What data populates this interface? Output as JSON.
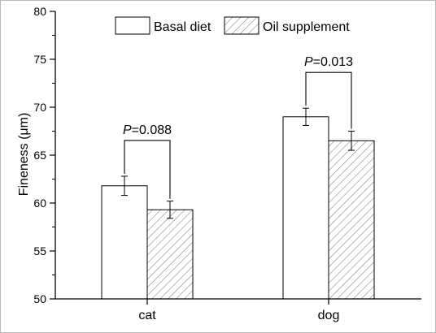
{
  "chart_data": {
    "type": "bar",
    "ylabel": "Fineness (μm)",
    "ylim": [
      50,
      80
    ],
    "yticks": [
      50,
      55,
      60,
      65,
      70,
      75,
      80
    ],
    "categories": [
      "cat",
      "dog"
    ],
    "series": [
      {
        "name": "Basal diet",
        "values": [
          61.8,
          69.0
        ],
        "errors": [
          1.0,
          0.9
        ],
        "pattern": "white"
      },
      {
        "name": "Oil supplement",
        "values": [
          59.3,
          66.5
        ],
        "errors": [
          0.9,
          1.0
        ],
        "pattern": "diagonal-hatch"
      }
    ],
    "annotations": [
      {
        "category": "cat",
        "p_symbol": "P",
        "p_value": "=0.088"
      },
      {
        "category": "dog",
        "p_symbol": "P",
        "p_value": "=0.013"
      }
    ],
    "legend_placement": "top",
    "grid": false
  },
  "colors": {
    "bar_edge": "#000000",
    "hatch": "#7f7f7f",
    "background": "#ffffff"
  }
}
